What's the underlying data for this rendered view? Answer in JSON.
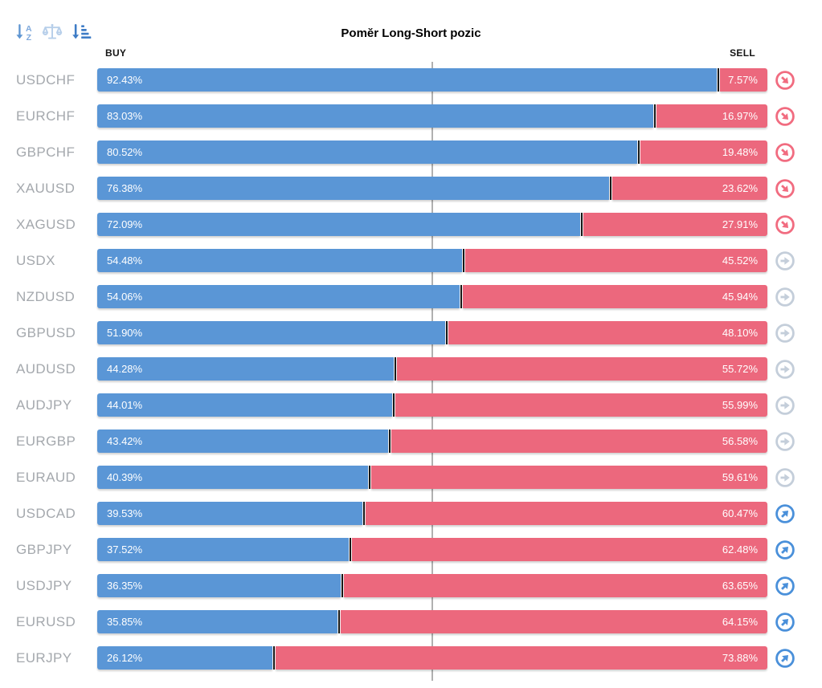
{
  "title": "Pomĕr Long-Short pozic",
  "headers": {
    "buy": "BUY",
    "sell": "SELL"
  },
  "toolbar": {
    "icons": [
      {
        "name": "sort-alphabetical-icon"
      },
      {
        "name": "balance-scale-icon"
      },
      {
        "name": "sort-amount-icon"
      }
    ]
  },
  "colors": {
    "buy_bar": "#5a96d6",
    "sell_bar": "#ec687d",
    "divider": "#191919",
    "center_line": "#b0b0b0",
    "pair_label": "#a4a8ad",
    "trend_down_icon": "#f16c80",
    "trend_flat_icon": "#c4ceda",
    "trend_up_icon": "#4a90da"
  },
  "rows": [
    {
      "pair": "USDCHF",
      "buy": 92.43,
      "buy_label": "92.43%",
      "sell": 7.57,
      "sell_label": "7.57%",
      "trend": "down"
    },
    {
      "pair": "EURCHF",
      "buy": 83.03,
      "buy_label": "83.03%",
      "sell": 16.97,
      "sell_label": "16.97%",
      "trend": "down"
    },
    {
      "pair": "GBPCHF",
      "buy": 80.52,
      "buy_label": "80.52%",
      "sell": 19.48,
      "sell_label": "19.48%",
      "trend": "down"
    },
    {
      "pair": "XAUUSD",
      "buy": 76.38,
      "buy_label": "76.38%",
      "sell": 23.62,
      "sell_label": "23.62%",
      "trend": "down"
    },
    {
      "pair": "XAGUSD",
      "buy": 72.09,
      "buy_label": "72.09%",
      "sell": 27.91,
      "sell_label": "27.91%",
      "trend": "down"
    },
    {
      "pair": "USDX",
      "buy": 54.48,
      "buy_label": "54.48%",
      "sell": 45.52,
      "sell_label": "45.52%",
      "trend": "flat"
    },
    {
      "pair": "NZDUSD",
      "buy": 54.06,
      "buy_label": "54.06%",
      "sell": 45.94,
      "sell_label": "45.94%",
      "trend": "flat"
    },
    {
      "pair": "GBPUSD",
      "buy": 51.9,
      "buy_label": "51.90%",
      "sell": 48.1,
      "sell_label": "48.10%",
      "trend": "flat"
    },
    {
      "pair": "AUDUSD",
      "buy": 44.28,
      "buy_label": "44.28%",
      "sell": 55.72,
      "sell_label": "55.72%",
      "trend": "flat"
    },
    {
      "pair": "AUDJPY",
      "buy": 44.01,
      "buy_label": "44.01%",
      "sell": 55.99,
      "sell_label": "55.99%",
      "trend": "flat"
    },
    {
      "pair": "EURGBP",
      "buy": 43.42,
      "buy_label": "43.42%",
      "sell": 56.58,
      "sell_label": "56.58%",
      "trend": "flat"
    },
    {
      "pair": "EURAUD",
      "buy": 40.39,
      "buy_label": "40.39%",
      "sell": 59.61,
      "sell_label": "59.61%",
      "trend": "flat"
    },
    {
      "pair": "USDCAD",
      "buy": 39.53,
      "buy_label": "39.53%",
      "sell": 60.47,
      "sell_label": "60.47%",
      "trend": "up"
    },
    {
      "pair": "GBPJPY",
      "buy": 37.52,
      "buy_label": "37.52%",
      "sell": 62.48,
      "sell_label": "62.48%",
      "trend": "up"
    },
    {
      "pair": "USDJPY",
      "buy": 36.35,
      "buy_label": "36.35%",
      "sell": 63.65,
      "sell_label": "63.65%",
      "trend": "up"
    },
    {
      "pair": "EURUSD",
      "buy": 35.85,
      "buy_label": "35.85%",
      "sell": 64.15,
      "sell_label": "64.15%",
      "trend": "up"
    },
    {
      "pair": "EURJPY",
      "buy": 26.12,
      "buy_label": "26.12%",
      "sell": 73.88,
      "sell_label": "73.88%",
      "trend": "up"
    }
  ],
  "chart_data": {
    "type": "bar",
    "orientation": "horizontal-stacked",
    "title": "Pomĕr Long-Short pozic",
    "categories": [
      "USDCHF",
      "EURCHF",
      "GBPCHF",
      "XAUUSD",
      "XAGUSD",
      "USDX",
      "NZDUSD",
      "GBPUSD",
      "AUDUSD",
      "AUDJPY",
      "EURGBP",
      "EURAUD",
      "USDCAD",
      "GBPJPY",
      "USDJPY",
      "EURUSD",
      "EURJPY"
    ],
    "series": [
      {
        "name": "BUY",
        "color": "#5a96d6",
        "values": [
          92.43,
          83.03,
          80.52,
          76.38,
          72.09,
          54.48,
          54.06,
          51.9,
          44.28,
          44.01,
          43.42,
          40.39,
          39.53,
          37.52,
          36.35,
          35.85,
          26.12
        ]
      },
      {
        "name": "SELL",
        "color": "#ec687d",
        "values": [
          7.57,
          16.97,
          19.48,
          23.62,
          27.91,
          45.52,
          45.94,
          48.1,
          55.72,
          55.99,
          56.58,
          59.61,
          60.47,
          62.48,
          63.65,
          64.15,
          73.88
        ]
      }
    ],
    "xlim": [
      0,
      100
    ],
    "value_suffix": "%",
    "reference_line": {
      "at": 50,
      "axis": "x",
      "style": "solid gray vertical center line"
    },
    "row_trend_markers": [
      "down",
      "down",
      "down",
      "down",
      "down",
      "flat",
      "flat",
      "flat",
      "flat",
      "flat",
      "flat",
      "flat",
      "up",
      "up",
      "up",
      "up",
      "up"
    ]
  }
}
